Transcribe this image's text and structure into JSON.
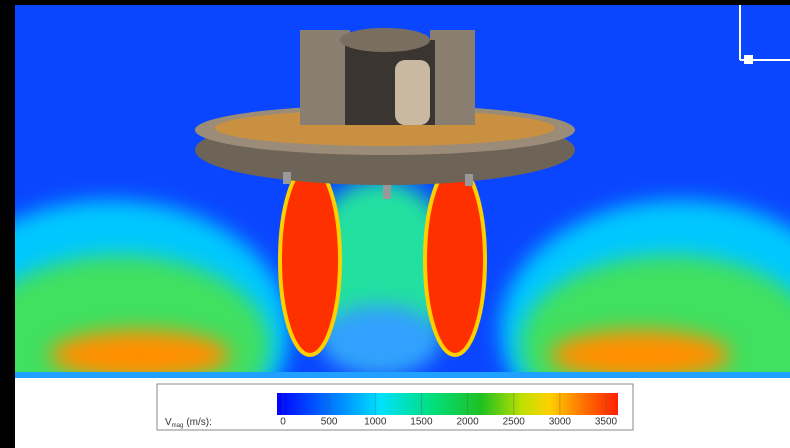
{
  "colorbar": {
    "label_main": "V",
    "label_sub": "mag",
    "label_unit": "(m/s):",
    "range": [
      0,
      3500
    ],
    "ticks": [
      0,
      500,
      1000,
      1500,
      2000,
      2500,
      3000,
      3500
    ]
  }
}
